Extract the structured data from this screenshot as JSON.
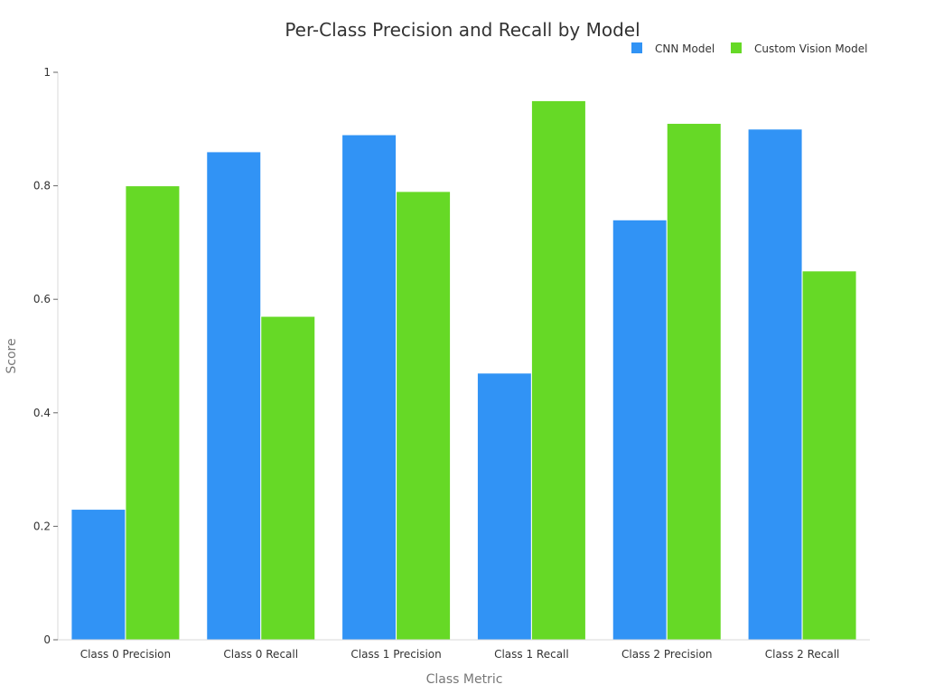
{
  "chart_data": {
    "type": "bar",
    "title": "Per-Class Precision and Recall by Model",
    "xlabel": "Class Metric",
    "ylabel": "Score",
    "categories": [
      "Class 0 Precision",
      "Class 0 Recall",
      "Class 1 Precision",
      "Class 1 Recall",
      "Class 2 Precision",
      "Class 2 Recall"
    ],
    "series": [
      {
        "name": "CNN Model",
        "color": "#3193f5",
        "values": [
          0.23,
          0.86,
          0.89,
          0.47,
          0.74,
          0.9
        ]
      },
      {
        "name": "Custom Vision Model",
        "color": "#66d926",
        "values": [
          0.8,
          0.57,
          0.79,
          0.95,
          0.91,
          0.65
        ]
      }
    ],
    "ylim": [
      0,
      1
    ],
    "yticks": [
      0,
      0.2,
      0.4,
      0.6,
      0.8,
      1
    ],
    "ytick_labels": [
      "0",
      "0.2",
      "0.4",
      "0.6",
      "0.8",
      "1"
    ],
    "grid": false,
    "legend_position": "top-right"
  }
}
